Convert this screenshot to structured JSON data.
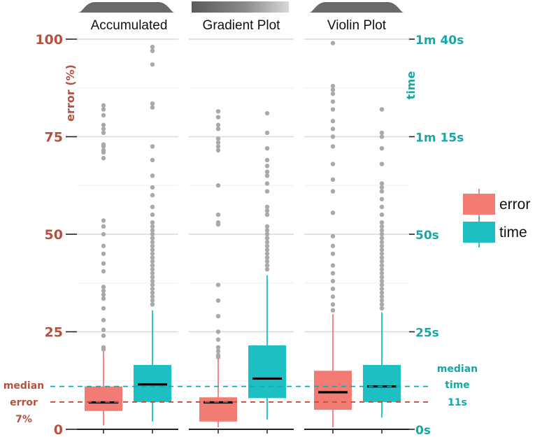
{
  "chart_data": {
    "type": "box",
    "panels": [
      "Accumulated",
      "Gradient Plot",
      "Violin Plot"
    ],
    "series": [
      {
        "name": "error",
        "color": "#f27c74",
        "axis": "left"
      },
      {
        "name": "time",
        "color": "#1ebfc2",
        "axis": "right"
      }
    ],
    "left_axis": {
      "label": "error (%)",
      "range": [
        0,
        100
      ],
      "ticks": [
        0,
        25,
        50,
        75,
        100
      ],
      "tick_labels": [
        "0",
        "25",
        "50",
        "75",
        "100"
      ]
    },
    "right_axis": {
      "label": "time",
      "range_seconds": [
        0,
        100
      ],
      "ticks": [
        0,
        25,
        50,
        75,
        100
      ],
      "tick_labels": [
        "0s",
        "25s",
        "50s",
        "1m 15s",
        "1m 40s"
      ]
    },
    "boxes": [
      {
        "panel": "Accumulated",
        "series": "error",
        "whisker_low": 1,
        "q1": 4.7,
        "median": 6.9,
        "q3": 11,
        "whisker_high": 20,
        "outliers": [
          20.5,
          21,
          24,
          25.5,
          28,
          31,
          33.5,
          34.5,
          35.5,
          36.5,
          40.5,
          42.5,
          45,
          47,
          50,
          52,
          53.5,
          69.5,
          71,
          71.5,
          72.5,
          73,
          76,
          77,
          78,
          80.5,
          82,
          83
        ]
      },
      {
        "panel": "Accumulated",
        "series": "time",
        "whisker_low": 2,
        "q1": 7,
        "median": 11.5,
        "q3": 16.5,
        "whisker_high": 30.5,
        "outliers": [
          32,
          33,
          34,
          35,
          36,
          37,
          38,
          39,
          40,
          41,
          42,
          43,
          44,
          45,
          46,
          47,
          48,
          49,
          50,
          51,
          52,
          53,
          55,
          57,
          60,
          62,
          65,
          69,
          72.5,
          82.5,
          83.5,
          93.5,
          97,
          98
        ]
      },
      {
        "panel": "Gradient Plot",
        "series": "error",
        "whisker_low": 0.5,
        "q1": 2,
        "median": 6.9,
        "q3": 8.2,
        "whisker_high": 18,
        "outliers": [
          18.5,
          19,
          20,
          21,
          23,
          25,
          29,
          33,
          37,
          52.5,
          53,
          55,
          62.5,
          71.5,
          72.5,
          73.5,
          74.5,
          77,
          78,
          80,
          81.5
        ]
      },
      {
        "panel": "Gradient Plot",
        "series": "time",
        "whisker_low": 2.5,
        "q1": 8,
        "median": 13,
        "q3": 21.5,
        "whisker_high": 39.5,
        "outliers": [
          41,
          42,
          43,
          44,
          45,
          46,
          47,
          48,
          49,
          50,
          51,
          52,
          55,
          56,
          57,
          61,
          63,
          65,
          66,
          67.5,
          69,
          72,
          76,
          81
        ]
      },
      {
        "panel": "Violin Plot",
        "series": "error",
        "whisker_low": 0.5,
        "q1": 5,
        "median": 9.5,
        "q3": 15,
        "whisker_high": 29.5,
        "outliers": [
          30.5,
          32,
          34,
          36,
          38,
          40,
          42,
          45,
          47,
          49.5,
          55.5,
          61,
          64,
          68,
          72.5,
          75,
          77,
          79,
          82,
          84,
          86,
          87,
          88,
          99
        ]
      },
      {
        "panel": "Violin Plot",
        "series": "time",
        "whisker_low": 3,
        "q1": 7,
        "median": 11,
        "q3": 16.5,
        "whisker_high": 30,
        "outliers": [
          31,
          32,
          33,
          34,
          35,
          36,
          37,
          38,
          39,
          40,
          41,
          42,
          43,
          44,
          45,
          46,
          47,
          48,
          49,
          50,
          51,
          52,
          53,
          55,
          57,
          59,
          61,
          62,
          63,
          68,
          72,
          75,
          76,
          82
        ]
      }
    ],
    "reference_lines": [
      {
        "series": "error",
        "value": 7,
        "label_lines": [
          "median",
          "error",
          "7%"
        ]
      },
      {
        "series": "time",
        "value": 11,
        "label_lines": [
          "median",
          "time",
          "11s"
        ]
      }
    ],
    "legend": {
      "position": "right",
      "entries": [
        "error",
        "time"
      ]
    },
    "grid": true
  },
  "colors": {
    "error": "#f27c74",
    "time": "#1ebfc2",
    "left_text": "#b5513f",
    "right_text": "#1aa6a6",
    "strip_start": "#5a5a5a",
    "strip_end": "#d8d8d8",
    "grid": "#d9d9d9",
    "outlier": "#a9a9a9"
  }
}
